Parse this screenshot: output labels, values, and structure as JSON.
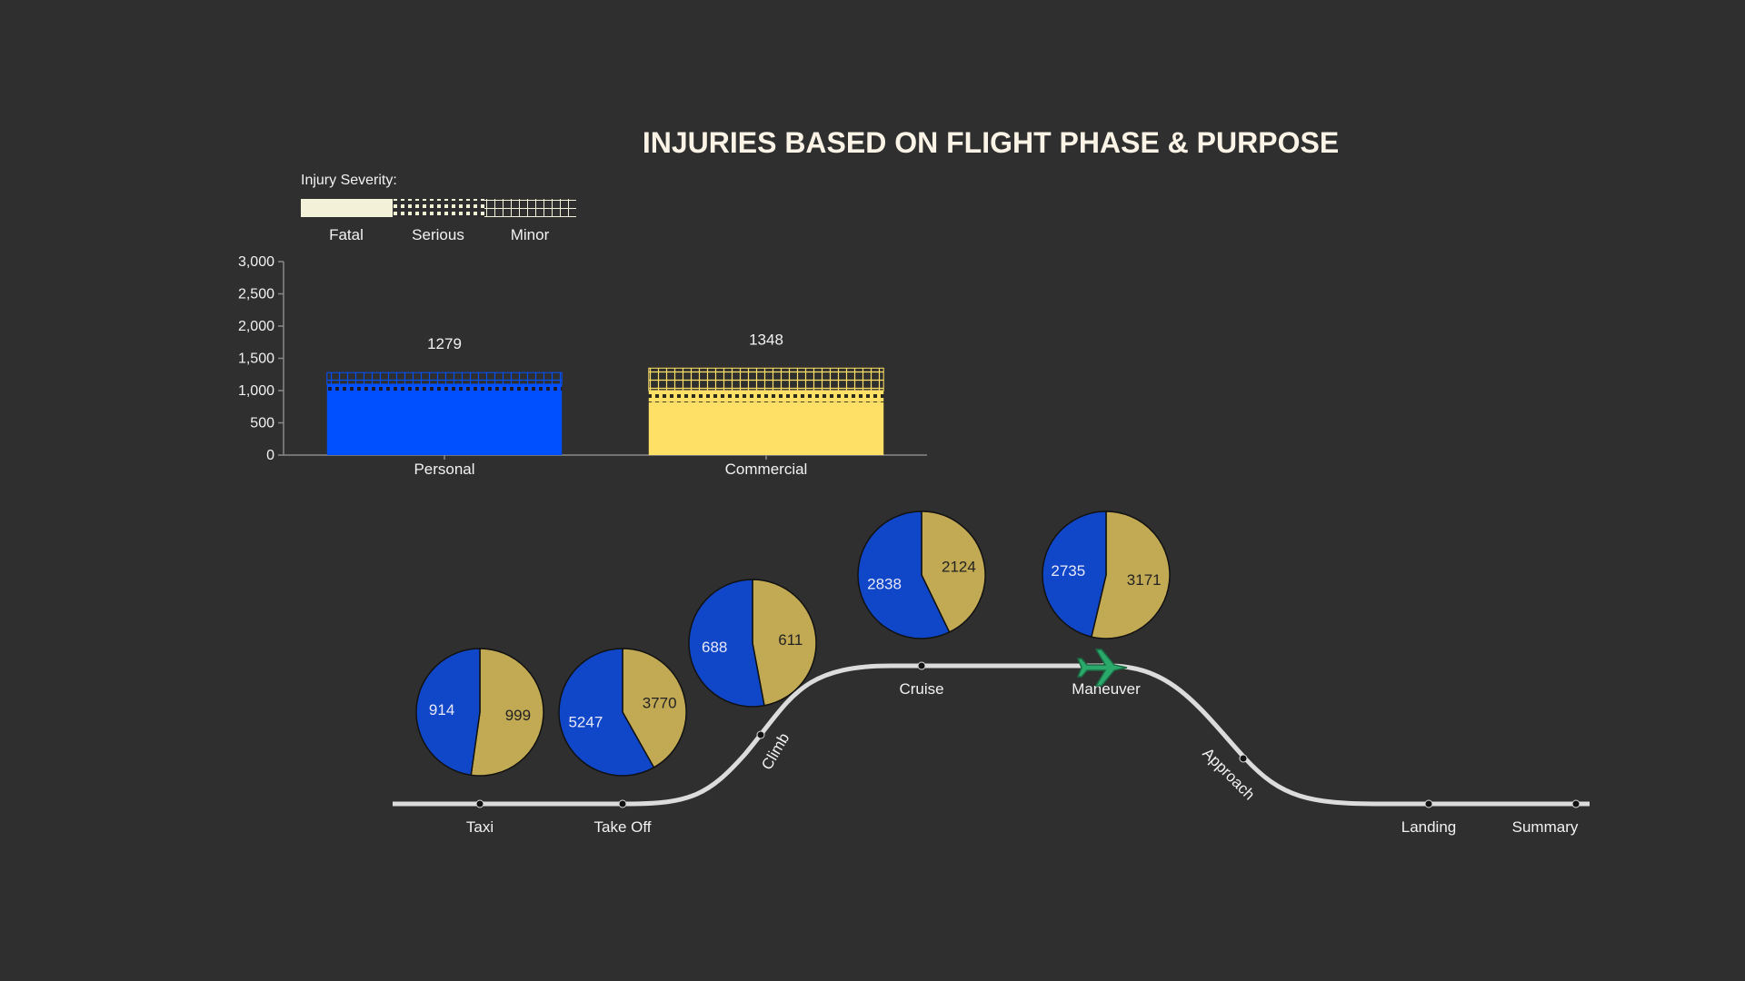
{
  "title": "INJURIES BASED ON FLIGHT PHASE & PURPOSE",
  "colors": {
    "background": "#2f2f2f",
    "personal": "#0050ff",
    "commercial": "#ffe066",
    "pie_personal": "#0f47c8",
    "pie_commercial": "#c2aa54",
    "legend": "#f3f2d8",
    "track": "#dcdcdc",
    "plane": "#2aa96b"
  },
  "legend": {
    "title": "Injury Severity:",
    "items": [
      "Fatal",
      "Serious",
      "Minor"
    ]
  },
  "chart_data": [
    {
      "type": "bar",
      "stacked": true,
      "categories": [
        "Personal",
        "Commercial"
      ],
      "series": [
        {
          "name": "Fatal",
          "values": [
            980,
            820
          ]
        },
        {
          "name": "Serious",
          "values": [
            120,
            180
          ]
        },
        {
          "name": "Minor",
          "values": [
            179,
            348
          ]
        }
      ],
      "totals": [
        1279,
        1348
      ],
      "ylim": [
        0,
        3000
      ],
      "yticks": [
        0,
        500,
        1000,
        1500,
        2000,
        2500,
        3000
      ],
      "ytick_labels": [
        "0",
        "500",
        "1,000",
        "1,500",
        "2,000",
        "2,500",
        "3,000"
      ]
    },
    {
      "type": "pie",
      "phases": [
        {
          "phase": "Taxi",
          "personal": 914,
          "commercial": 999
        },
        {
          "phase": "Take Off",
          "personal": 5247,
          "commercial": 3770
        },
        {
          "phase": "Climb",
          "personal": 688,
          "commercial": 611
        },
        {
          "phase": "Cruise",
          "personal": 2838,
          "commercial": 2124
        },
        {
          "phase": "Maneuver",
          "personal": 2735,
          "commercial": 3171
        }
      ]
    }
  ],
  "flight_path": {
    "stops": [
      "Taxi",
      "Take Off",
      "Climb",
      "Cruise",
      "Maneuver",
      "Approach",
      "Landing",
      "Summary"
    ],
    "current": "Maneuver",
    "plane_icon": "airplane-icon"
  }
}
